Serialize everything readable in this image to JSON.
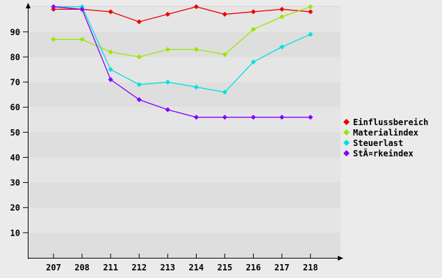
{
  "chart_data": {
    "type": "line",
    "categories": [
      "207",
      "208",
      "211",
      "212",
      "213",
      "214",
      "215",
      "216",
      "217",
      "218"
    ],
    "series": [
      {
        "name": "Einflussbereich",
        "color": "#ee0000",
        "values": [
          99,
          99,
          98,
          94,
          97,
          100,
          97,
          98,
          99,
          98
        ]
      },
      {
        "name": "Materialindex",
        "color": "#99e600",
        "values": [
          87,
          87,
          82,
          80,
          83,
          83,
          81,
          91,
          96,
          100
        ]
      },
      {
        "name": "Steuerlast",
        "color": "#00e0e0",
        "values": [
          100,
          100,
          75,
          69,
          70,
          68,
          66,
          78,
          84,
          89
        ]
      },
      {
        "name": "StÃ¤rkeindex",
        "color": "#7f00ff",
        "values": [
          100,
          99,
          71,
          63,
          59,
          56,
          56,
          56,
          56,
          56
        ]
      }
    ],
    "y_ticks": [
      10,
      20,
      30,
      40,
      50,
      60,
      70,
      80,
      90
    ],
    "ylim": [
      0,
      100.5
    ],
    "title": "",
    "xlabel": "",
    "ylabel": "",
    "grid": "banded-rows",
    "legend_position": "right",
    "marker": "diamond"
  },
  "colors": {
    "page_background": "#ebebeb",
    "band_dark": "#dedede",
    "band_light": "#e5e5e5",
    "axis": "#000000",
    "tick_label": "#000000"
  }
}
